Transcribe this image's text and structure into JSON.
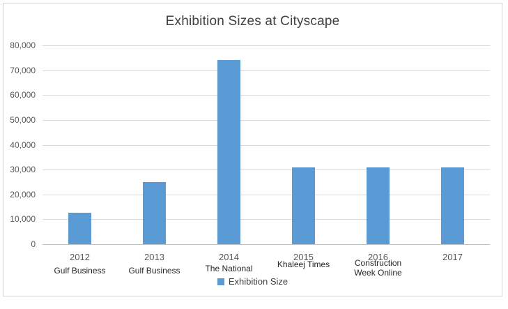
{
  "chart_title": "Exhibition Sizes at Cityscape",
  "legend": {
    "label": "Exhibition Size",
    "swatch_color": "#5b9bd5"
  },
  "colors": {
    "bar": "#5b9bd5",
    "gridline": "#d9d9d9",
    "axis_line": "#bfbfbf",
    "title_text": "#404040",
    "tick_text": "#595959",
    "sublabel_text": "#262626"
  },
  "chart_data": {
    "type": "bar",
    "title": "Exhibition Sizes at Cityscape",
    "categories": [
      "2012",
      "2013",
      "2014",
      "2015",
      "2016",
      "2017"
    ],
    "category_sublabels": [
      "Gulf Business",
      "Gulf Business",
      "The National",
      "Khaleej Times",
      "Construction Week Online",
      ""
    ],
    "series": [
      {
        "name": "Exhibition Size",
        "values": [
          12500,
          25000,
          74000,
          31000,
          31000,
          31000
        ]
      }
    ],
    "xlabel": "",
    "ylabel": "",
    "ylim": [
      0,
      80000
    ],
    "ytick_interval": 10000,
    "ytick_labels": [
      "0",
      "10,000",
      "20,000",
      "30,000",
      "40,000",
      "50,000",
      "60,000",
      "70,000",
      "80,000"
    ],
    "grid": true,
    "legend_position": "bottom",
    "bar_color": "#5b9bd5"
  }
}
